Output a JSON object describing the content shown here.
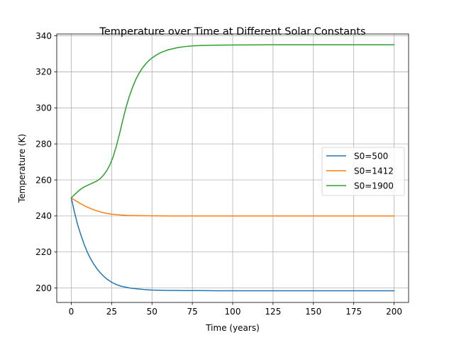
{
  "chart_data": {
    "type": "line",
    "title": "Temperature over Time at Different Solar Constants",
    "xlabel": "Time (years)",
    "ylabel": "Temperature (K)",
    "xlim": [
      -9,
      209
    ],
    "ylim": [
      192,
      341
    ],
    "xticks": [
      0,
      25,
      50,
      75,
      100,
      125,
      150,
      175,
      200
    ],
    "yticks": [
      200,
      220,
      240,
      260,
      280,
      300,
      320,
      340
    ],
    "grid": true,
    "legend_position": "center-right",
    "series": [
      {
        "name": "S0=500",
        "color": "#1f77b4",
        "x": [
          0,
          2,
          4,
          6,
          8,
          10,
          12,
          14,
          16,
          18,
          20,
          22,
          25,
          28,
          31,
          34,
          37,
          40,
          45,
          50,
          55,
          60,
          70,
          80,
          90,
          100,
          120,
          150,
          200
        ],
        "y": [
          250,
          242,
          235,
          229.3,
          224.2,
          219.8,
          216.2,
          213.2,
          210.6,
          208.4,
          206.6,
          205,
          203.2,
          201.9,
          201,
          200.4,
          199.9,
          199.6,
          199.2,
          198.9,
          198.8,
          198.7,
          198.6,
          198.6,
          198.5,
          198.5,
          198.5,
          198.5,
          198.5
        ]
      },
      {
        "name": "S0=1412",
        "color": "#ff7f0e",
        "x": [
          0,
          3,
          6,
          9,
          12,
          15,
          18,
          21,
          25,
          30,
          35,
          40,
          50,
          60,
          80,
          100,
          150,
          200
        ],
        "y": [
          250,
          248.3,
          246.7,
          245.3,
          244.1,
          243.1,
          242.3,
          241.6,
          241,
          240.6,
          240.3,
          240.2,
          240.1,
          240,
          240,
          240,
          240,
          240
        ]
      },
      {
        "name": "S0=1900",
        "color": "#2ca02c",
        "x": [
          0,
          2,
          4,
          6,
          8,
          10,
          12,
          14,
          16,
          18,
          20,
          22,
          24,
          26,
          28,
          30,
          32,
          34,
          36,
          38,
          40,
          42,
          44,
          46,
          48,
          50,
          53,
          56,
          60,
          65,
          70,
          75,
          80,
          90,
          100,
          125,
          150,
          175,
          200
        ],
        "y": [
          250,
          251.8,
          253.5,
          255,
          256.1,
          257,
          257.8,
          258.6,
          259.5,
          260.8,
          262.7,
          265.2,
          268.5,
          273,
          279,
          286,
          293.5,
          300.5,
          306.5,
          311.5,
          315.8,
          319.2,
          322,
          324.3,
          326.2,
          327.7,
          329.5,
          330.9,
          332.2,
          333.3,
          334,
          334.4,
          334.6,
          334.8,
          334.9,
          335,
          335,
          335,
          335
        ]
      }
    ]
  }
}
